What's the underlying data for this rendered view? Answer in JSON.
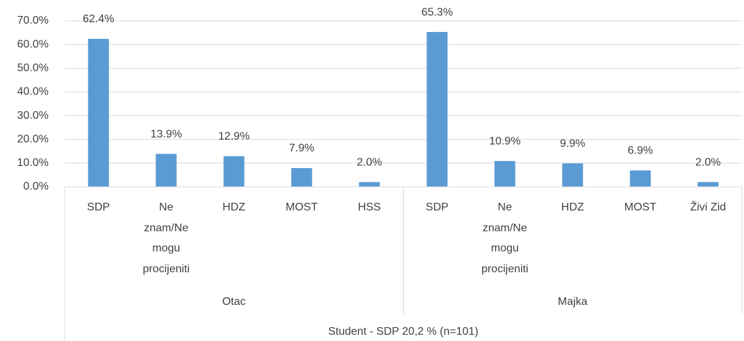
{
  "chart_data": {
    "type": "bar",
    "group_title": "Student - SDP 20,2 % (n=101)",
    "groups": [
      {
        "label": "Otac",
        "categories": [
          "SDP",
          "Ne znam/Ne mogu procijeniti",
          "HDZ",
          "MOST",
          "HSS"
        ],
        "values": [
          62.4,
          13.9,
          12.9,
          7.9,
          2.0
        ],
        "value_labels": [
          "62.4%",
          "13.9%",
          "12.9%",
          "7.9%",
          "2.0%"
        ]
      },
      {
        "label": "Majka",
        "categories": [
          "SDP",
          "Ne znam/Ne mogu procijeniti",
          "HDZ",
          "MOST",
          "Živi Zid"
        ],
        "values": [
          65.3,
          10.9,
          9.9,
          6.9,
          2.0
        ],
        "value_labels": [
          "65.3%",
          "10.9%",
          "9.9%",
          "6.9%",
          "2.0%"
        ]
      }
    ],
    "color": "#5b9bd5",
    "ylim": [
      0,
      70
    ],
    "yticks": [
      {
        "value": 0,
        "label": "0.0%"
      },
      {
        "value": 10,
        "label": "10.0%"
      },
      {
        "value": 20,
        "label": "20.0%"
      },
      {
        "value": 30,
        "label": "30.0%"
      },
      {
        "value": 40,
        "label": "40.0%"
      },
      {
        "value": 50,
        "label": "50.0%"
      },
      {
        "value": 60,
        "label": "60.0%"
      },
      {
        "value": 70,
        "label": "70.0%"
      }
    ],
    "grid": true
  }
}
